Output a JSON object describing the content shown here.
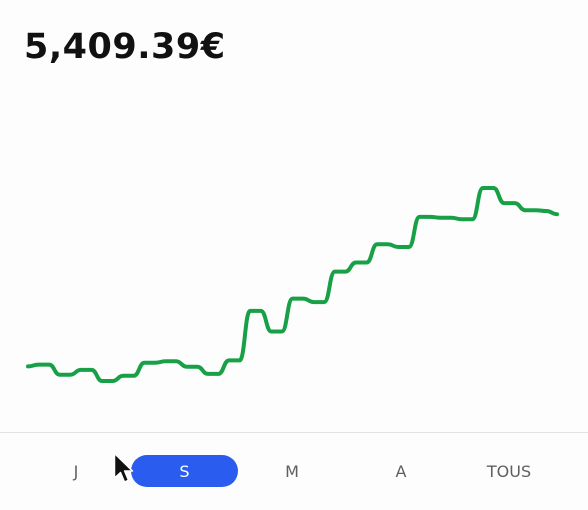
{
  "balance": {
    "amount": "5,409.39€"
  },
  "chart_data": {
    "type": "line",
    "x": [
      0,
      1,
      2,
      3,
      4,
      5,
      6,
      7,
      8,
      9,
      10,
      11,
      12,
      13,
      14,
      15,
      16,
      17,
      18,
      19,
      20,
      21,
      22,
      23,
      24,
      25,
      26,
      27,
      28,
      29,
      30,
      31,
      32,
      33,
      34,
      35,
      36,
      37,
      38,
      39,
      40,
      41,
      42,
      43,
      44,
      45,
      46,
      47,
      48,
      49,
      50
    ],
    "values": [
      3908,
      3955,
      3955,
      3700,
      3700,
      3820,
      3820,
      3540,
      3540,
      3670,
      3670,
      4000,
      4000,
      4040,
      4040,
      3900,
      3900,
      3720,
      3720,
      4060,
      4060,
      5310,
      5310,
      4790,
      4790,
      5620,
      5620,
      5530,
      5530,
      6300,
      6300,
      6530,
      6530,
      6990,
      6990,
      6920,
      6920,
      7680,
      7680,
      7660,
      7660,
      7620,
      7620,
      8410,
      8410,
      8030,
      8030,
      7850,
      7850,
      7830,
      7750
    ],
    "color": "#17a046",
    "grid": false
  },
  "range_selector": {
    "options": [
      {
        "label": "J",
        "active": false
      },
      {
        "label": "S",
        "active": true
      },
      {
        "label": "M",
        "active": false
      },
      {
        "label": "A",
        "active": false
      },
      {
        "label": "TOUS",
        "active": false
      }
    ],
    "active_color": "#2b5cf0"
  }
}
